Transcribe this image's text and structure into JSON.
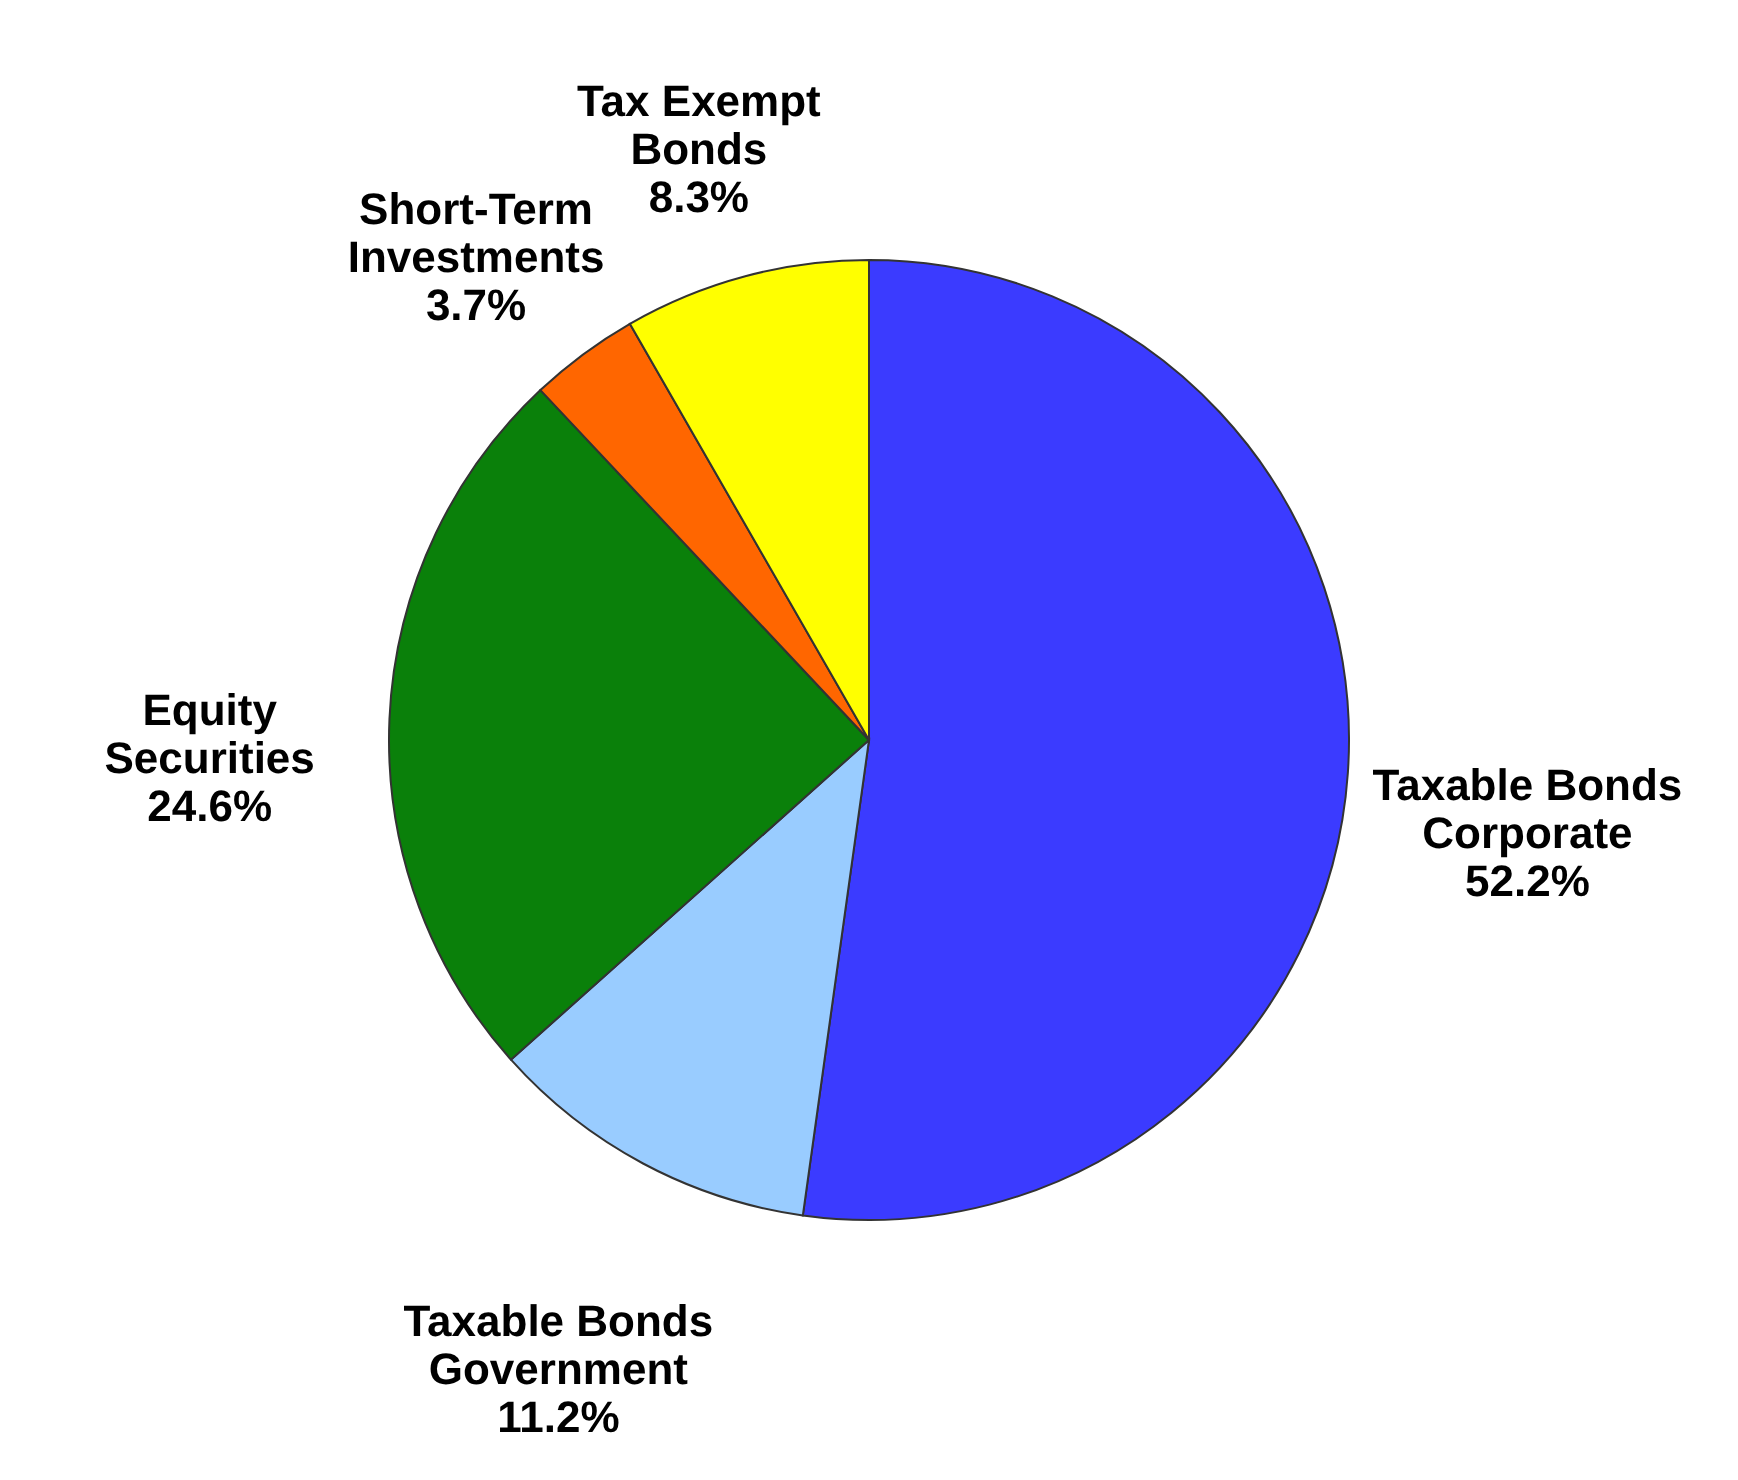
{
  "chart_data": {
    "type": "pie",
    "categories": [
      "Taxable Bonds\nCorporate",
      "Taxable Bonds\nGovernment",
      "Equity\nSecurities",
      "Short-Term\nInvestments",
      "Tax Exempt\nBonds"
    ],
    "values": [
      52.2,
      11.2,
      24.6,
      3.7,
      8.3
    ],
    "colors": [
      "#3b3bff",
      "#99ccff",
      "#0a800a",
      "#ff6600",
      "#ffff00"
    ],
    "value_labels": [
      "52.2%",
      "11.2%",
      "24.6%",
      "3.7%",
      "8.3%"
    ]
  }
}
